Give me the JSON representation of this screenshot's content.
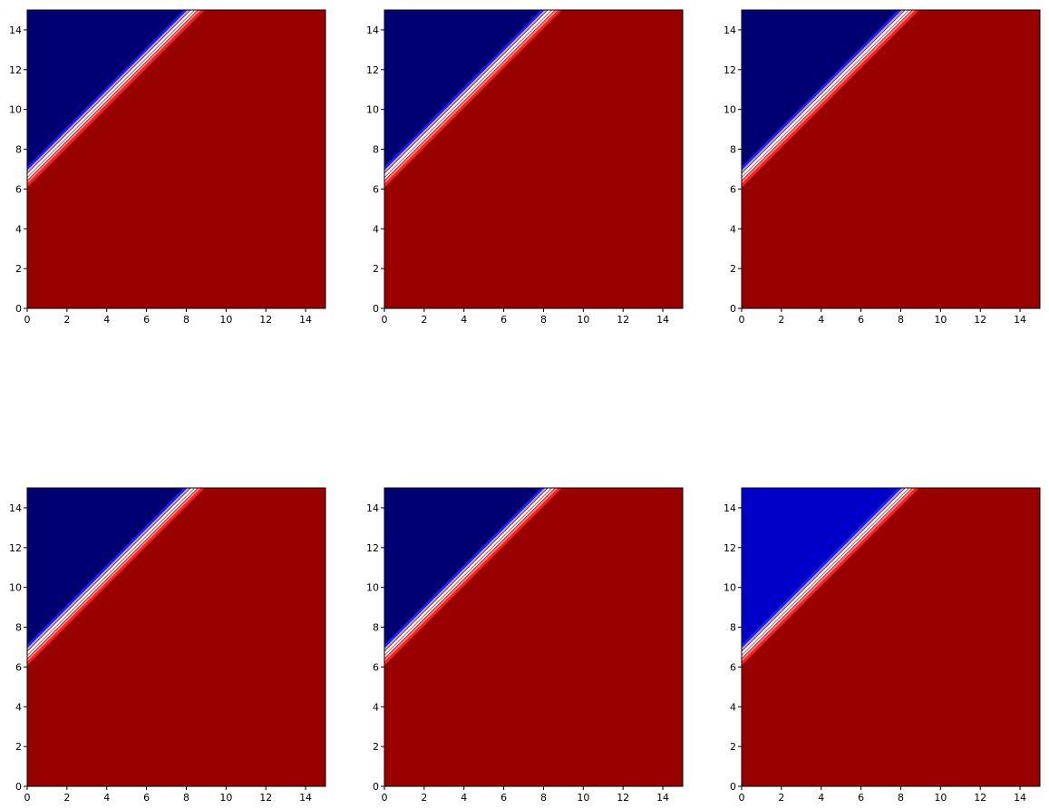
{
  "colors": {
    "region_upper_dark": "#000073",
    "region_upper_bright": "#0000c8",
    "region_lower": "#990000",
    "band_light": "#fff0f0",
    "band_white": "#ffffff",
    "band_light_blue": "#aaaaff",
    "band_blue": "#2020ff",
    "band_red": "#ff2020",
    "band_pink": "#ff8080",
    "axis": "#000000",
    "background": "#ffffff"
  },
  "chart_data": [
    {
      "type": "heatmap",
      "xlim": [
        0,
        15
      ],
      "ylim": [
        0,
        15
      ],
      "xticks": [
        "0",
        "2",
        "4",
        "6",
        "8",
        "10",
        "12",
        "14"
      ],
      "yticks": [
        "0",
        "2",
        "4",
        "6",
        "8",
        "10",
        "12",
        "14"
      ],
      "boundary_line": {
        "intercept": 6.5,
        "slope": 1.0
      },
      "upper_region_color": "#000073",
      "lower_region_color": "#990000",
      "grid": false
    },
    {
      "type": "heatmap",
      "xlim": [
        0,
        15
      ],
      "ylim": [
        0,
        15
      ],
      "xticks": [
        "0",
        "2",
        "4",
        "6",
        "8",
        "10",
        "12",
        "14"
      ],
      "yticks": [
        "0",
        "2",
        "4",
        "6",
        "8",
        "10",
        "12",
        "14"
      ],
      "boundary_line": {
        "intercept": 6.5,
        "slope": 1.0
      },
      "upper_region_color": "#000073",
      "lower_region_color": "#990000",
      "grid": false
    },
    {
      "type": "heatmap",
      "xlim": [
        0,
        15
      ],
      "ylim": [
        0,
        15
      ],
      "xticks": [
        "0",
        "2",
        "4",
        "6",
        "8",
        "10",
        "12",
        "14"
      ],
      "yticks": [
        "0",
        "2",
        "4",
        "6",
        "8",
        "10",
        "12",
        "14"
      ],
      "boundary_line": {
        "intercept": 6.5,
        "slope": 1.0
      },
      "upper_region_color": "#000073",
      "lower_region_color": "#990000",
      "grid": false
    },
    {
      "type": "heatmap",
      "xlim": [
        0,
        15
      ],
      "ylim": [
        0,
        15
      ],
      "xticks": [
        "0",
        "2",
        "4",
        "6",
        "8",
        "10",
        "12",
        "14"
      ],
      "yticks": [
        "0",
        "2",
        "4",
        "6",
        "8",
        "10",
        "12",
        "14"
      ],
      "boundary_line": {
        "intercept": 6.5,
        "slope": 1.0
      },
      "upper_region_color": "#000073",
      "lower_region_color": "#990000",
      "grid": false
    },
    {
      "type": "heatmap",
      "xlim": [
        0,
        15
      ],
      "ylim": [
        0,
        15
      ],
      "xticks": [
        "0",
        "2",
        "4",
        "6",
        "8",
        "10",
        "12",
        "14"
      ],
      "yticks": [
        "0",
        "2",
        "4",
        "6",
        "8",
        "10",
        "12",
        "14"
      ],
      "boundary_line": {
        "intercept": 6.5,
        "slope": 1.0
      },
      "upper_region_color": "#000073",
      "lower_region_color": "#990000",
      "grid": false
    },
    {
      "type": "heatmap",
      "xlim": [
        0,
        15
      ],
      "ylim": [
        0,
        15
      ],
      "xticks": [
        "0",
        "2",
        "4",
        "6",
        "8",
        "10",
        "12",
        "14"
      ],
      "yticks": [
        "0",
        "2",
        "4",
        "6",
        "8",
        "10",
        "12",
        "14"
      ],
      "boundary_line": {
        "intercept": 6.5,
        "slope": 1.0
      },
      "upper_region_color": "#0000c8",
      "lower_region_color": "#990000",
      "grid": false
    }
  ]
}
